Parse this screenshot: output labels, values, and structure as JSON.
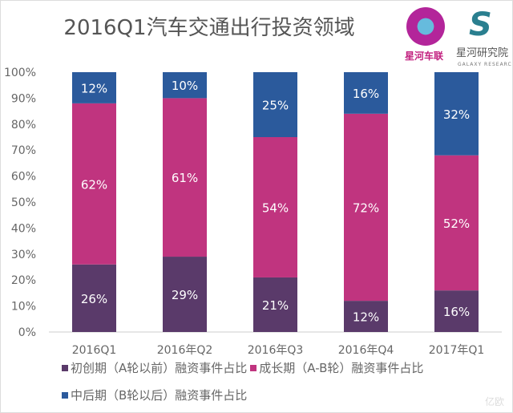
{
  "header": {
    "title": "2016Q1汽车交通出行投资领域",
    "logo1_text": "星河车联",
    "logo2_text": "星河研究院",
    "logo2_sub": "GALAXY RESEARCH"
  },
  "watermark": "亿欧",
  "chart_data": {
    "type": "bar",
    "stacked": true,
    "title": "2016Q1汽车交通出行投资领域",
    "categories": [
      "2016Q1",
      "2016年Q2",
      "2016年Q3",
      "2016年Q4",
      "2017年Q1"
    ],
    "series": [
      {
        "name": "初创期（A轮以前）融资事件占比",
        "color": "#5a3a6a",
        "values": [
          26,
          29,
          21,
          12,
          16
        ],
        "labels": [
          "26%",
          "29%",
          "21%",
          "12%",
          "16%"
        ]
      },
      {
        "name": "成长期（A-B轮）融资事件占比",
        "color": "#c0347f",
        "values": [
          62,
          61,
          54,
          72,
          52
        ],
        "labels": [
          "62%",
          "61%",
          "54%",
          "72%",
          "52%"
        ]
      },
      {
        "name": "中后期（B轮以后）融资事件占比",
        "color": "#2b5a9c",
        "values": [
          12,
          10,
          25,
          16,
          32
        ],
        "labels": [
          "12%",
          "10%",
          "25%",
          "16%",
          "32%"
        ]
      }
    ],
    "yticks": [
      "0%",
      "10%",
      "20%",
      "30%",
      "40%",
      "50%",
      "60%",
      "70%",
      "80%",
      "90%",
      "100%"
    ],
    "ylim": [
      0,
      100
    ],
    "xlabel": "",
    "ylabel": "",
    "legend": "bottom"
  }
}
